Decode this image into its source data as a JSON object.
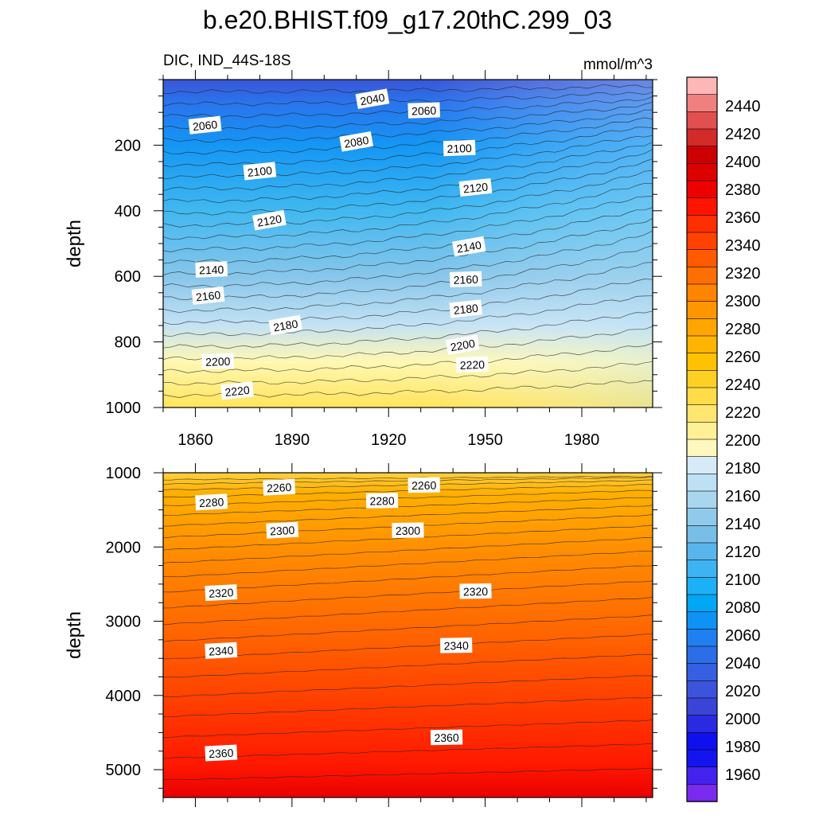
{
  "title": "b.e20.BHIST.f09_g17.20thC.299_03",
  "chart_data": [
    {
      "type": "heatmap",
      "subtitle_left": "DIC, IND_44S-18S",
      "subtitle_right": "mmol/m^3",
      "ylabel": "depth",
      "xlim": [
        1850,
        2002
      ],
      "ylim": [
        0,
        1000
      ],
      "x_ticks": [
        1860,
        1890,
        1920,
        1950,
        1980
      ],
      "x_tick_labels": [
        "1860",
        "1890",
        "1920",
        "1950",
        "1980"
      ],
      "y_ticks": [
        200,
        400,
        600,
        800,
        1000
      ],
      "y_tick_labels": [
        "200",
        "400",
        "600",
        "800",
        "1000"
      ],
      "contour_labels": [
        {
          "text": "2040",
          "year": 1915,
          "depth": 60
        },
        {
          "text": "2060",
          "year": 1863,
          "depth": 140
        },
        {
          "text": "2060",
          "year": 1931,
          "depth": 95
        },
        {
          "text": "2080",
          "year": 1910,
          "depth": 190
        },
        {
          "text": "2100",
          "year": 1880,
          "depth": 280
        },
        {
          "text": "2100",
          "year": 1942,
          "depth": 210
        },
        {
          "text": "2120",
          "year": 1883,
          "depth": 430
        },
        {
          "text": "2120",
          "year": 1947,
          "depth": 330
        },
        {
          "text": "2140",
          "year": 1865,
          "depth": 580
        },
        {
          "text": "2140",
          "year": 1945,
          "depth": 510
        },
        {
          "text": "2160",
          "year": 1864,
          "depth": 660
        },
        {
          "text": "2160",
          "year": 1944,
          "depth": 610
        },
        {
          "text": "2180",
          "year": 1888,
          "depth": 750
        },
        {
          "text": "2180",
          "year": 1944,
          "depth": 700
        },
        {
          "text": "2200",
          "year": 1867,
          "depth": 860
        },
        {
          "text": "2200",
          "year": 1943,
          "depth": 810
        },
        {
          "text": "2220",
          "year": 1873,
          "depth": 950
        },
        {
          "text": "2220",
          "year": 1946,
          "depth": 870
        }
      ]
    },
    {
      "type": "heatmap",
      "ylabel": "depth",
      "xlim": [
        1850,
        2002
      ],
      "ylim": [
        1000,
        5375
      ],
      "x_ticks": [
        1860,
        1890,
        1920,
        1950,
        1980
      ],
      "y_ticks": [
        1000,
        2000,
        3000,
        4000,
        5000
      ],
      "y_tick_labels": [
        "1000",
        "2000",
        "3000",
        "4000",
        "5000"
      ],
      "contour_labels": [
        {
          "text": "2260",
          "year": 1886,
          "depth": 1200
        },
        {
          "text": "2260",
          "year": 1931,
          "depth": 1170
        },
        {
          "text": "2280",
          "year": 1865,
          "depth": 1400
        },
        {
          "text": "2280",
          "year": 1918,
          "depth": 1380
        },
        {
          "text": "2300",
          "year": 1887,
          "depth": 1780
        },
        {
          "text": "2300",
          "year": 1926,
          "depth": 1780
        },
        {
          "text": "2320",
          "year": 1868,
          "depth": 2620
        },
        {
          "text": "2320",
          "year": 1947,
          "depth": 2600
        },
        {
          "text": "2340",
          "year": 1868,
          "depth": 3400
        },
        {
          "text": "2340",
          "year": 1941,
          "depth": 3330
        },
        {
          "text": "2360",
          "year": 1868,
          "depth": 4780
        },
        {
          "text": "2360",
          "year": 1938,
          "depth": 4570
        }
      ]
    }
  ],
  "colorbar": {
    "labels": [
      "2440",
      "2420",
      "2400",
      "2380",
      "2360",
      "2340",
      "2320",
      "2300",
      "2280",
      "2260",
      "2240",
      "2220",
      "2200",
      "2180",
      "2160",
      "2140",
      "2120",
      "2100",
      "2080",
      "2060",
      "2040",
      "2020",
      "2000",
      "1980",
      "1960"
    ],
    "colors": [
      "#fdb7b7",
      "#f08080",
      "#e05050",
      "#d32a2a",
      "#cc0000",
      "#dd0000",
      "#ee0000",
      "#ff1400",
      "#ff2e00",
      "#ff4200",
      "#ff5a00",
      "#ff6e00",
      "#ff8400",
      "#ff9600",
      "#ffa500",
      "#ffb400",
      "#ffc200",
      "#ffd024",
      "#ffdc4a",
      "#ffe670",
      "#fff096",
      "#fff8be",
      "#d6ebf7",
      "#bde0f2",
      "#a8d6ee",
      "#90caea",
      "#78bee6",
      "#5ab4ec",
      "#3eb3f2",
      "#1eb0f5",
      "#00a7f5",
      "#0e92f3",
      "#2080ef",
      "#2c6ee8",
      "#3660e2",
      "#3c54dc",
      "#3a44d6",
      "#2a2ae0",
      "#1010ee",
      "#1414ee",
      "#4422ee",
      "#7a2aee"
    ]
  }
}
